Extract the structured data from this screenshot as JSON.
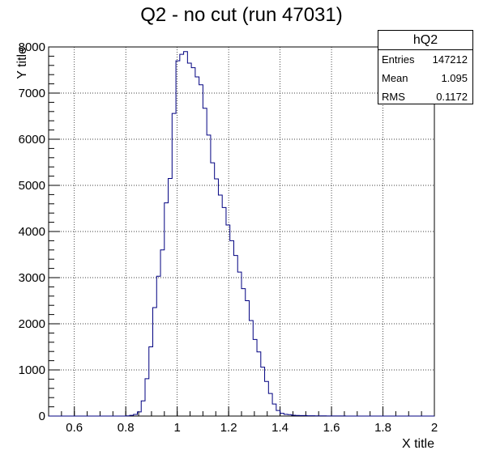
{
  "chart_data": {
    "type": "histogram",
    "title": "Q2 - no cut (run 47031)",
    "xlabel": "X title",
    "ylabel": "Y title",
    "xlim": [
      0.5,
      2.0
    ],
    "ylim": [
      0,
      8000
    ],
    "x_ticks": [
      "0.6",
      "0.8",
      "1",
      "1.2",
      "1.4",
      "1.6",
      "1.8",
      "2"
    ],
    "y_ticks": [
      "0",
      "1000",
      "2000",
      "3000",
      "4000",
      "5000",
      "6000",
      "7000",
      "8000"
    ],
    "grid": true,
    "line_color": "#000080",
    "bins": {
      "x_start": 0.5,
      "bin_width": 0.015,
      "values": [
        0,
        0,
        0,
        0,
        0,
        0,
        0,
        0,
        0,
        0,
        0,
        0,
        0,
        0,
        0,
        0,
        0,
        0,
        0,
        0,
        5,
        15,
        35,
        90,
        330,
        810,
        1500,
        2350,
        3030,
        3600,
        4620,
        5150,
        6560,
        7700,
        7840,
        7900,
        7650,
        7550,
        7350,
        7180,
        6670,
        6090,
        5490,
        5140,
        4790,
        4520,
        4140,
        3800,
        3480,
        3120,
        2760,
        2500,
        2070,
        1660,
        1390,
        1060,
        750,
        490,
        260,
        120,
        60,
        38,
        30,
        18,
        14,
        10,
        10,
        6,
        6,
        5,
        4,
        4,
        3,
        2,
        3,
        2,
        2,
        1,
        1,
        1,
        1,
        0,
        0,
        0,
        0,
        0,
        0,
        0,
        0,
        0,
        0,
        0,
        0,
        0,
        0,
        0,
        0,
        0,
        0,
        0
      ]
    }
  },
  "stats": {
    "name": "hQ2",
    "rows": [
      {
        "label": "Entries",
        "value": "147212"
      },
      {
        "label": "Mean",
        "value": "1.095"
      },
      {
        "label": "RMS",
        "value": "0.1172"
      }
    ]
  }
}
